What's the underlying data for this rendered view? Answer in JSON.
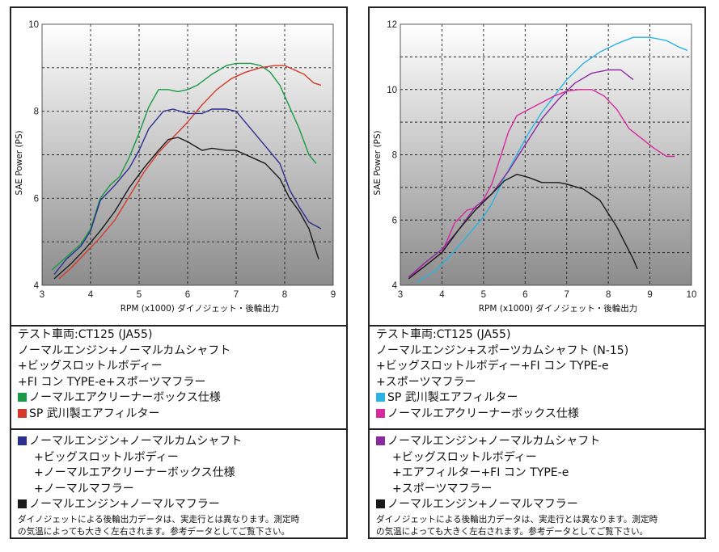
{
  "chart_data": [
    {
      "type": "line",
      "xlabel": "RPM (x1000) ダイノジェット・後輪出力",
      "ylabel": "SAE Power (PS)",
      "xlim": [
        3,
        9
      ],
      "ylim": [
        4,
        10
      ],
      "xticks": [
        "3",
        "4",
        "5",
        "6",
        "7",
        "8",
        "9"
      ],
      "yticks": [
        "4",
        "6",
        "8",
        "10"
      ],
      "series": [
        {
          "name": "ノーマルエアクリーナーボックス仕様",
          "color": "#1a9a46",
          "points": [
            [
              3.2,
              4.35
            ],
            [
              3.5,
              4.65
            ],
            [
              3.8,
              4.95
            ],
            [
              4.0,
              5.3
            ],
            [
              4.2,
              6.0
            ],
            [
              4.4,
              6.3
            ],
            [
              4.6,
              6.5
            ],
            [
              4.8,
              6.95
            ],
            [
              5.0,
              7.5
            ],
            [
              5.2,
              8.1
            ],
            [
              5.4,
              8.5
            ],
            [
              5.6,
              8.5
            ],
            [
              5.8,
              8.45
            ],
            [
              6.0,
              8.5
            ],
            [
              6.2,
              8.6
            ],
            [
              6.5,
              8.85
            ],
            [
              6.8,
              9.05
            ],
            [
              7.0,
              9.1
            ],
            [
              7.3,
              9.1
            ],
            [
              7.5,
              9.05
            ],
            [
              7.7,
              8.9
            ],
            [
              7.9,
              8.6
            ],
            [
              8.1,
              8.1
            ],
            [
              8.3,
              7.6
            ],
            [
              8.5,
              7.0
            ],
            [
              8.65,
              6.8
            ]
          ]
        },
        {
          "name": "SP 武川製エアフィルター",
          "color": "#d33a2c",
          "points": [
            [
              3.35,
              4.15
            ],
            [
              3.6,
              4.4
            ],
            [
              3.9,
              4.75
            ],
            [
              4.2,
              5.1
            ],
            [
              4.5,
              5.5
            ],
            [
              4.8,
              6.05
            ],
            [
              5.1,
              6.6
            ],
            [
              5.4,
              7.05
            ],
            [
              5.7,
              7.4
            ],
            [
              6.0,
              7.75
            ],
            [
              6.3,
              8.15
            ],
            [
              6.6,
              8.5
            ],
            [
              6.9,
              8.75
            ],
            [
              7.2,
              8.9
            ],
            [
              7.5,
              9.0
            ],
            [
              7.8,
              9.05
            ],
            [
              8.0,
              9.05
            ],
            [
              8.2,
              8.95
            ],
            [
              8.4,
              8.85
            ],
            [
              8.6,
              8.65
            ],
            [
              8.75,
              8.6
            ]
          ]
        },
        {
          "name": "ノーマルエンジン+ノーマルカムシャフト+ビッグスロットルボディー+ノーマルエアクリーナーボックス仕様+ノーマルマフラー",
          "color": "#2b2f8f",
          "points": [
            [
              3.25,
              4.25
            ],
            [
              3.5,
              4.6
            ],
            [
              3.8,
              4.9
            ],
            [
              4.0,
              5.25
            ],
            [
              4.2,
              5.95
            ],
            [
              4.5,
              6.3
            ],
            [
              4.8,
              6.7
            ],
            [
              5.0,
              7.1
            ],
            [
              5.2,
              7.6
            ],
            [
              5.5,
              8.0
            ],
            [
              5.7,
              8.05
            ],
            [
              6.0,
              7.95
            ],
            [
              6.3,
              7.95
            ],
            [
              6.5,
              8.05
            ],
            [
              6.8,
              8.05
            ],
            [
              7.0,
              8.0
            ],
            [
              7.3,
              7.6
            ],
            [
              7.6,
              7.2
            ],
            [
              7.9,
              6.8
            ],
            [
              8.1,
              6.2
            ],
            [
              8.3,
              5.8
            ],
            [
              8.5,
              5.45
            ],
            [
              8.75,
              5.3
            ]
          ]
        },
        {
          "name": "ノーマルエンジン+ノーマルマフラー",
          "color": "#1a1a1a",
          "points": [
            [
              3.25,
              4.15
            ],
            [
              3.6,
              4.5
            ],
            [
              3.9,
              4.85
            ],
            [
              4.2,
              5.25
            ],
            [
              4.5,
              5.7
            ],
            [
              4.8,
              6.25
            ],
            [
              5.1,
              6.7
            ],
            [
              5.4,
              7.1
            ],
            [
              5.6,
              7.35
            ],
            [
              5.8,
              7.4
            ],
            [
              6.0,
              7.3
            ],
            [
              6.3,
              7.1
            ],
            [
              6.5,
              7.15
            ],
            [
              6.8,
              7.1
            ],
            [
              7.0,
              7.1
            ],
            [
              7.3,
              6.95
            ],
            [
              7.6,
              6.8
            ],
            [
              7.9,
              6.45
            ],
            [
              8.1,
              6.0
            ],
            [
              8.3,
              5.7
            ],
            [
              8.5,
              5.3
            ],
            [
              8.7,
              4.6
            ]
          ]
        }
      ]
    },
    {
      "type": "line",
      "xlabel": "RPM (x1000) ダイノジェット・後輪出力",
      "ylabel": "SAE Power (PS)",
      "xlim": [
        3,
        10
      ],
      "ylim": [
        4,
        12
      ],
      "xticks": [
        "3",
        "4",
        "5",
        "6",
        "7",
        "8",
        "9",
        "10"
      ],
      "yticks": [
        "4",
        "6",
        "8",
        "10",
        "12"
      ],
      "series": [
        {
          "name": "SP 武川製エアフィルター",
          "color": "#2ab3e3",
          "points": [
            [
              3.4,
              4.1
            ],
            [
              3.8,
              4.4
            ],
            [
              4.2,
              4.9
            ],
            [
              4.6,
              5.5
            ],
            [
              5.0,
              6.1
            ],
            [
              5.2,
              6.5
            ],
            [
              5.5,
              7.3
            ],
            [
              5.8,
              8.0
            ],
            [
              6.1,
              8.7
            ],
            [
              6.4,
              9.3
            ],
            [
              6.7,
              9.8
            ],
            [
              7.0,
              10.3
            ],
            [
              7.4,
              10.8
            ],
            [
              7.8,
              11.15
            ],
            [
              8.2,
              11.4
            ],
            [
              8.6,
              11.6
            ],
            [
              9.0,
              11.6
            ],
            [
              9.4,
              11.5
            ],
            [
              9.7,
              11.3
            ],
            [
              9.9,
              11.2
            ]
          ]
        },
        {
          "name": "ノーマルエアクリーナーボックス仕様",
          "color": "#d62a9e",
          "points": [
            [
              3.2,
              4.25
            ],
            [
              3.6,
              4.6
            ],
            [
              4.0,
              5.0
            ],
            [
              4.3,
              5.9
            ],
            [
              4.6,
              6.3
            ],
            [
              4.9,
              6.4
            ],
            [
              5.2,
              7.1
            ],
            [
              5.4,
              7.9
            ],
            [
              5.6,
              8.7
            ],
            [
              5.8,
              9.2
            ],
            [
              6.1,
              9.4
            ],
            [
              6.4,
              9.6
            ],
            [
              6.7,
              9.8
            ],
            [
              7.0,
              9.95
            ],
            [
              7.3,
              10.0
            ],
            [
              7.6,
              10.0
            ],
            [
              7.9,
              9.8
            ],
            [
              8.2,
              9.4
            ],
            [
              8.5,
              8.8
            ],
            [
              8.8,
              8.5
            ],
            [
              9.1,
              8.2
            ],
            [
              9.4,
              7.95
            ],
            [
              9.6,
              7.95
            ]
          ]
        },
        {
          "name": "ノーマルエンジン+ノーマルカムシャフト+ビッグスロットルボディー+エアフィルター+FI コン TYPE-e+スポーツマフラー",
          "color": "#8a2aa0",
          "points": [
            [
              3.2,
              4.25
            ],
            [
              3.6,
              4.7
            ],
            [
              4.0,
              5.1
            ],
            [
              4.4,
              5.7
            ],
            [
              4.8,
              6.4
            ],
            [
              5.2,
              6.8
            ],
            [
              5.6,
              7.5
            ],
            [
              6.0,
              8.3
            ],
            [
              6.4,
              9.1
            ],
            [
              6.8,
              9.7
            ],
            [
              7.2,
              10.2
            ],
            [
              7.6,
              10.5
            ],
            [
              8.0,
              10.6
            ],
            [
              8.3,
              10.6
            ],
            [
              8.6,
              10.3
            ]
          ]
        },
        {
          "name": "ノーマルエンジン+ノーマルマフラー",
          "color": "#1a1a1a",
          "points": [
            [
              3.2,
              4.2
            ],
            [
              3.6,
              4.6
            ],
            [
              4.0,
              5.0
            ],
            [
              4.4,
              5.7
            ],
            [
              4.8,
              6.3
            ],
            [
              5.2,
              6.8
            ],
            [
              5.5,
              7.2
            ],
            [
              5.8,
              7.4
            ],
            [
              6.1,
              7.3
            ],
            [
              6.4,
              7.15
            ],
            [
              6.8,
              7.15
            ],
            [
              7.0,
              7.1
            ],
            [
              7.4,
              6.95
            ],
            [
              7.8,
              6.6
            ],
            [
              8.0,
              6.2
            ],
            [
              8.2,
              5.8
            ],
            [
              8.4,
              5.3
            ],
            [
              8.6,
              4.8
            ],
            [
              8.7,
              4.5
            ]
          ]
        }
      ]
    }
  ],
  "left_info": {
    "spec_lines": [
      "テスト車両:CT125 (JA55)",
      "ノーマルエンジン+ノーマルカムシャフト",
      "+ビッグスロットルボディー",
      "+FI コン TYPE-e+スポーツマフラー"
    ],
    "legend": [
      {
        "color": "#1a9a46",
        "label": "ノーマルエアクリーナーボックス仕様"
      },
      {
        "color": "#d33a2c",
        "label": "SP 武川製エアフィルター"
      }
    ],
    "compare_lines": [
      "ノーマルエンジン+ノーマルカムシャフト",
      "+ビッグスロットルボディー",
      "+ノーマルエアクリーナーボックス仕様",
      "+ノーマルマフラー"
    ],
    "compare_color": "#2b2f8f",
    "stock_color": "#1a1a1a",
    "stock_label": "ノーマルエンジン+ノーマルマフラー",
    "note1": "ダイノジェットによる後輪出力データは、実走行とは異なります。測定時",
    "note2": "の気温によっても大きく左右されます。参考データとしてご覧下さい。"
  },
  "right_info": {
    "spec_lines": [
      "テスト車両:CT125 (JA55)",
      "ノーマルエンジン+スポーツカムシャフト (N-15)",
      "+ビッグスロットルボディー+FI コン TYPE-e",
      "+スポーツマフラー"
    ],
    "legend": [
      {
        "color": "#2ab3e3",
        "label": "SP 武川製エアフィルター"
      },
      {
        "color": "#d62a9e",
        "label": "ノーマルエアクリーナーボックス仕様"
      }
    ],
    "compare_lines": [
      "ノーマルエンジン+ノーマルカムシャフト",
      "+ビッグスロットルボディー",
      "+エアフィルター+FI コン TYPE-e",
      "+スポーツマフラー"
    ],
    "compare_color": "#8a2aa0",
    "stock_color": "#1a1a1a",
    "stock_label": "ノーマルエンジン+ノーマルマフラー",
    "note1": "ダイノジェットによる後輪出力データは、実走行とは異なります。測定時",
    "note2": "の気温によっても大きく左右されます。参考データとしてご覧下さい。"
  }
}
